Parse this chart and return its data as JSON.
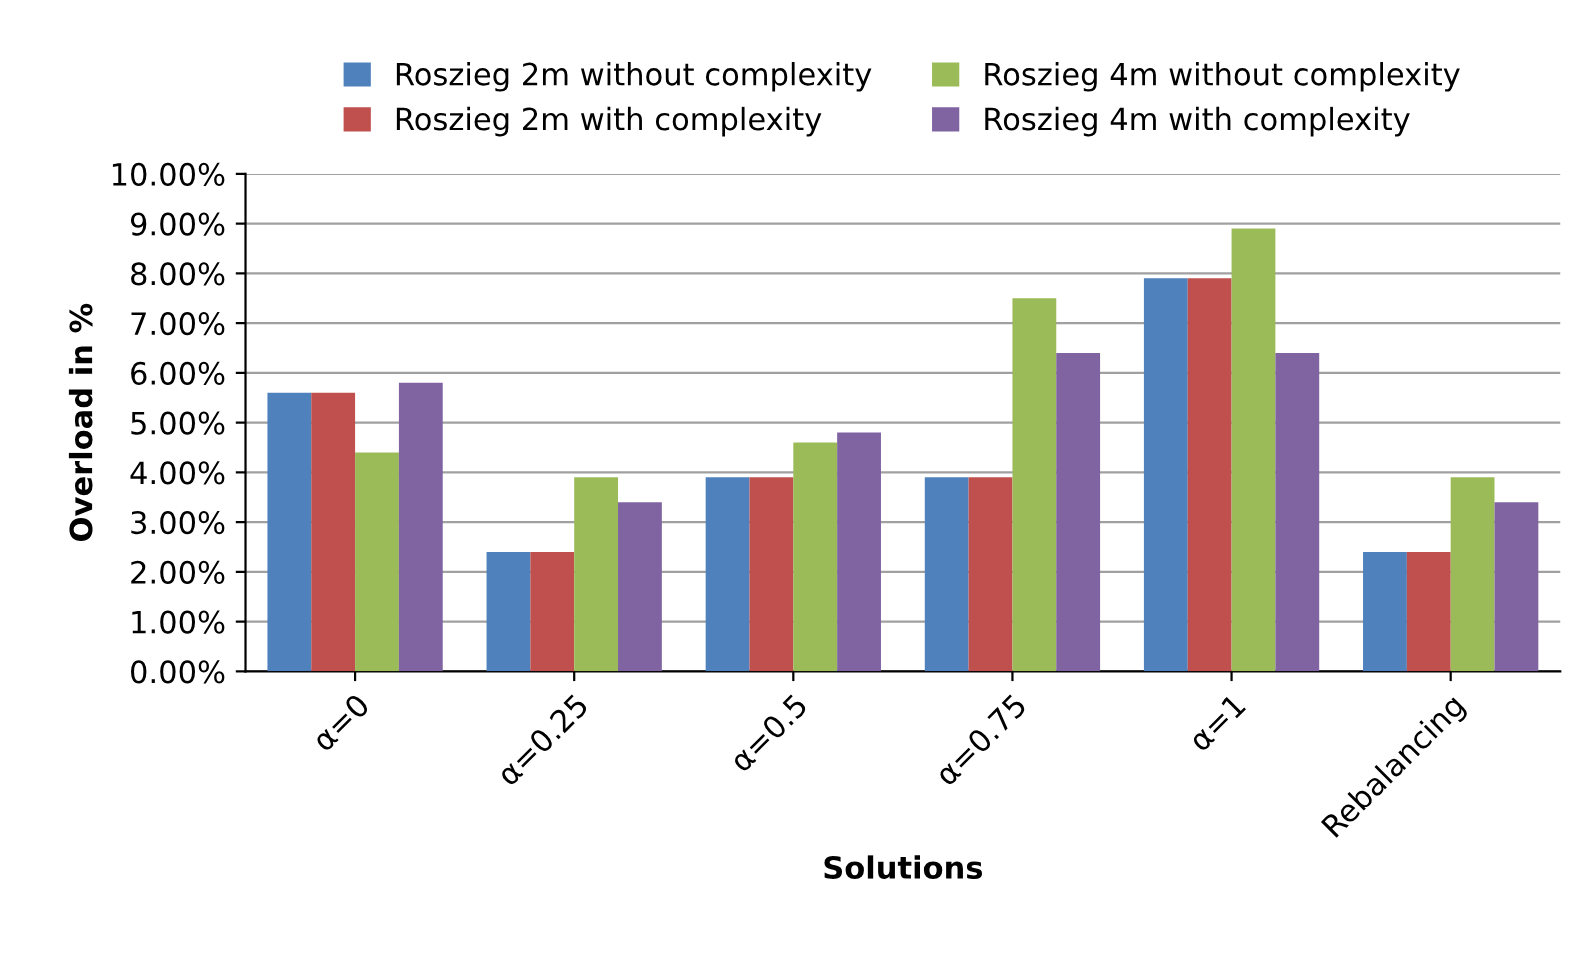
{
  "chart_data": {
    "type": "bar",
    "xlabel": "Solutions",
    "ylabel": "Overload in %",
    "categories": [
      "α=0",
      "α=0.25",
      "α=0.5",
      "α=0.75",
      "α=1",
      "Rebalancing"
    ],
    "series": [
      {
        "name": "Roszieg 2m without complexity",
        "color": "#4f81bd",
        "values": [
          5.6,
          2.4,
          3.9,
          3.9,
          7.9,
          2.4
        ]
      },
      {
        "name": "Roszieg 2m with complexity",
        "color": "#c0504d",
        "values": [
          5.6,
          2.4,
          3.9,
          3.9,
          7.9,
          2.4
        ]
      },
      {
        "name": "Roszieg 4m without complexity",
        "color": "#9bbb59",
        "values": [
          4.4,
          3.9,
          4.6,
          7.5,
          8.9,
          3.9
        ]
      },
      {
        "name": "Roszieg 4m with complexity",
        "color": "#8064a2",
        "values": [
          5.8,
          3.4,
          4.8,
          6.4,
          6.4,
          3.4
        ]
      }
    ],
    "ylim": [
      0,
      10
    ],
    "yticks": [
      {
        "value": 0,
        "label": "0.00%"
      },
      {
        "value": 1,
        "label": "1.00%"
      },
      {
        "value": 2,
        "label": "2.00%"
      },
      {
        "value": 3,
        "label": "3.00%"
      },
      {
        "value": 4,
        "label": "4.00%"
      },
      {
        "value": 5,
        "label": "5.00%"
      },
      {
        "value": 6,
        "label": "6.00%"
      },
      {
        "value": 7,
        "label": "7.00%"
      },
      {
        "value": 8,
        "label": "8.00%"
      },
      {
        "value": 9,
        "label": "9.00%"
      },
      {
        "value": 10,
        "label": "10.00%"
      }
    ],
    "grid": "y",
    "legend": "top"
  }
}
